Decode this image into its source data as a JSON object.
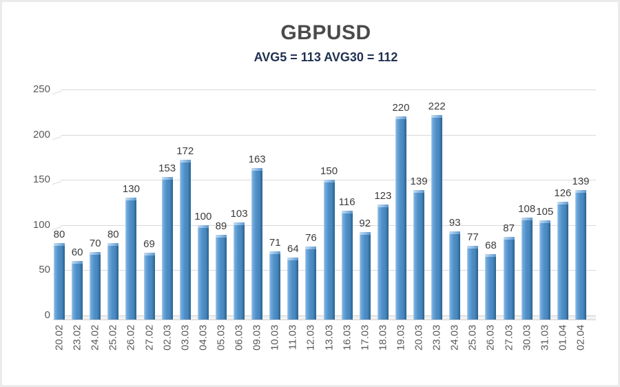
{
  "chart_data": {
    "type": "bar",
    "title": "GBPUSD",
    "subtitle": "AVG5 = 113 AVG30 = 112",
    "avg5": 113,
    "avg30": 112,
    "categories": [
      "20.02",
      "23.02",
      "24.02",
      "25.02",
      "26.02",
      "27.02",
      "02.03",
      "03.03",
      "04.03",
      "05.03",
      "06.03",
      "09.03",
      "10.03",
      "11.03",
      "12.03",
      "13.03",
      "16.03",
      "17.03",
      "18.03",
      "19.03",
      "20.03",
      "23.03",
      "24.03",
      "25.03",
      "26.03",
      "27.03",
      "30.03",
      "31.03",
      "01.04",
      "02.04"
    ],
    "values": [
      80,
      60,
      70,
      80,
      130,
      69,
      153,
      172,
      100,
      89,
      103,
      163,
      71,
      64,
      76,
      150,
      116,
      92,
      123,
      220,
      139,
      222,
      93,
      77,
      68,
      87,
      108,
      105,
      126,
      139
    ],
    "xlabel": "",
    "ylabel": "",
    "ylim": [
      0,
      250
    ],
    "yticks": [
      0,
      50,
      100,
      150,
      200,
      250
    ],
    "grid": true,
    "legend": "none",
    "style_3d": true,
    "colors": {
      "bar_main": "#4e8fc7",
      "bar_light": "#aecfea",
      "bar_dark": "#2c618c",
      "grid": "#d9d9d9",
      "axis_text": "#595959",
      "value_text": "#3b3b3b",
      "title_text": "#4a4a4a",
      "subtitle_text": "#1f3050",
      "background": "#ffffff"
    }
  }
}
